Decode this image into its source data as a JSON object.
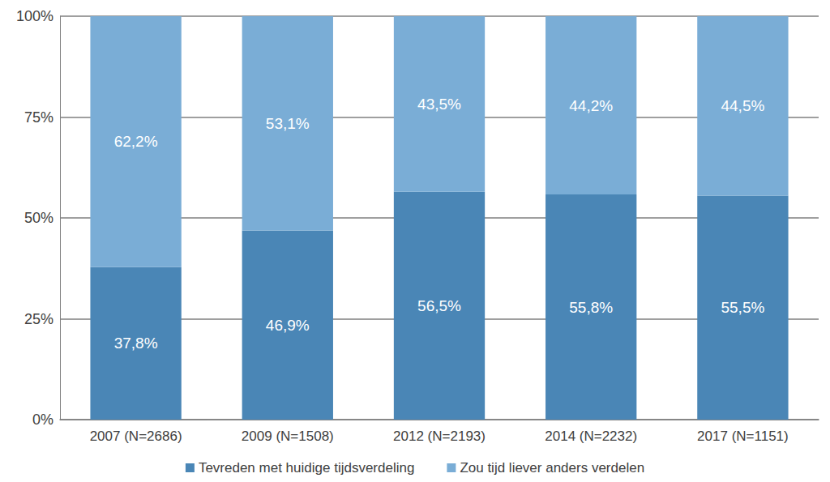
{
  "chart_data": {
    "type": "bar",
    "categories": [
      "2007 (N=2686)",
      "2009 (N=1508)",
      "2012 (N=2193)",
      "2014 (N=2232)",
      "2017 (N=1151)"
    ],
    "series": [
      {
        "name": "Tevreden met huidige tijdsverdeling",
        "color": "#4a86b6",
        "values": [
          37.8,
          46.9,
          56.5,
          55.8,
          55.5
        ],
        "value_labels": [
          "37,8%",
          "46,9%",
          "56,5%",
          "55,8%",
          "55,5%"
        ]
      },
      {
        "name": "Zou tijd liever anders verdelen",
        "color": "#7aadd6",
        "values": [
          62.2,
          53.1,
          43.5,
          44.2,
          44.5
        ],
        "value_labels": [
          "62,2%",
          "53,1%",
          "43,5%",
          "44,2%",
          "44,5%"
        ]
      }
    ],
    "ylim": [
      0,
      100
    ],
    "yticks": [
      {
        "value": 0,
        "label": "0%"
      },
      {
        "value": 25,
        "label": "25%"
      },
      {
        "value": 50,
        "label": "50%"
      },
      {
        "value": 75,
        "label": "75%"
      },
      {
        "value": 100,
        "label": "100%"
      }
    ],
    "stacked": true,
    "data_labels": true,
    "grid": true,
    "legend": "bottom"
  }
}
